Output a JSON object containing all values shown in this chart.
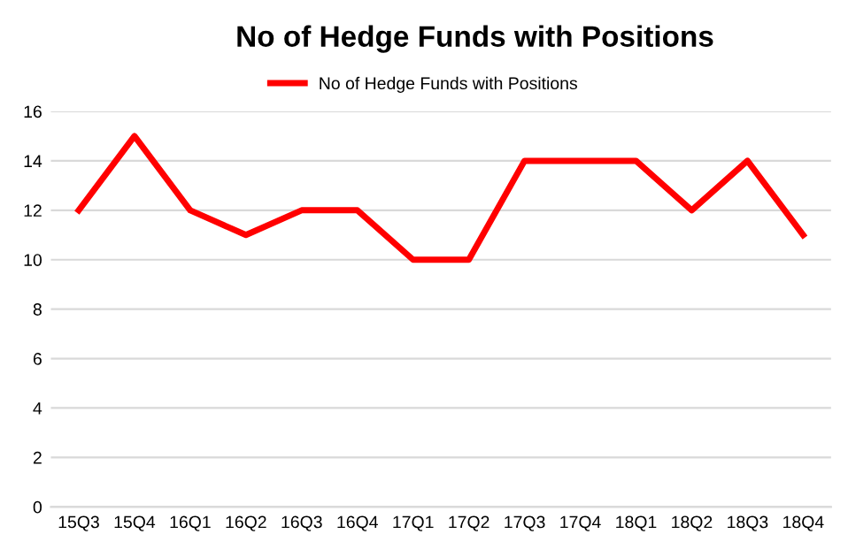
{
  "chart_data": {
    "type": "line",
    "title": "No of Hedge Funds with Positions",
    "categories": [
      "15Q3",
      "15Q4",
      "16Q1",
      "16Q2",
      "16Q3",
      "16Q4",
      "17Q1",
      "17Q2",
      "17Q3",
      "17Q4",
      "18Q1",
      "18Q2",
      "18Q3",
      "18Q4"
    ],
    "series": [
      {
        "name": "No of Hedge Funds with Positions",
        "color": "#ff0000",
        "values": [
          12,
          15,
          12,
          11,
          12,
          12,
          10,
          10,
          14,
          14,
          14,
          12,
          14,
          11
        ]
      }
    ],
    "ylim": [
      0,
      16
    ],
    "yticks": [
      0,
      2,
      4,
      6,
      8,
      10,
      12,
      14,
      16
    ],
    "grid": "y",
    "legend": "top",
    "marker": "none",
    "line_style": "solid"
  }
}
